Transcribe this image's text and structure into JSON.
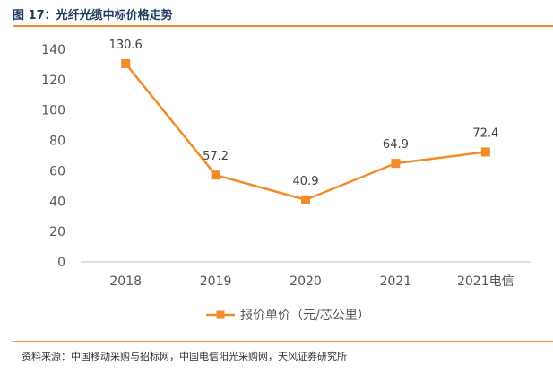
{
  "figure": {
    "title": "图 17：光纤光缆中标价格走势",
    "source": "资料来源：中国移动采购与招标网，中国电信阳光采购网，天风证券研究所"
  },
  "chart_data": {
    "type": "line",
    "title": "",
    "xlabel": "",
    "ylabel": "",
    "categories": [
      "2018",
      "2019",
      "2020",
      "2021",
      "2021电信"
    ],
    "series": [
      {
        "name": "报价单价（元/芯公里）",
        "values": [
          130.6,
          57.2,
          40.9,
          64.9,
          72.4
        ]
      }
    ],
    "data_labels": [
      "130.6",
      "57.2",
      "40.9",
      "64.9",
      "72.4"
    ],
    "ylim": [
      0,
      140
    ],
    "yticks": [
      "0",
      "20",
      "40",
      "60",
      "80",
      "100",
      "120",
      "140"
    ],
    "grid": false,
    "legend_position": "bottom",
    "colors": {
      "series": "#f28c28"
    }
  }
}
